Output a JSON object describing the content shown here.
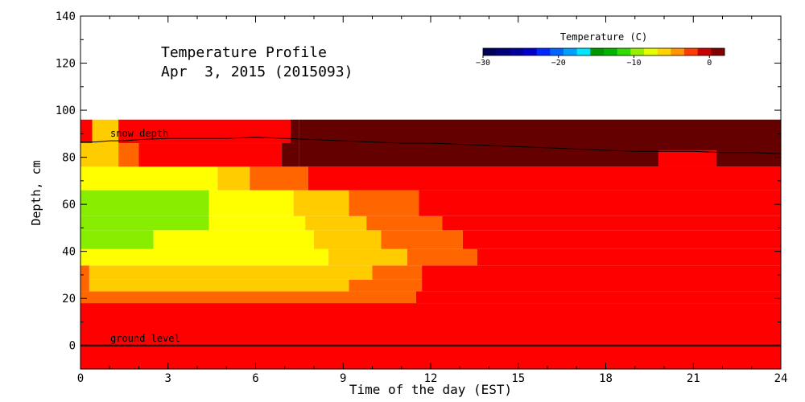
{
  "chart_data": {
    "type": "heatmap",
    "title": "Temperature Profile",
    "subtitle": "Apr  3, 2015 (2015093)",
    "xlabel": "Time of the day (EST)",
    "ylabel": "Depth, cm",
    "xlim": [
      0,
      24
    ],
    "ylim": [
      -10,
      140
    ],
    "x_ticks": [
      0,
      3,
      6,
      9,
      12,
      15,
      18,
      21,
      24
    ],
    "y_ticks": [
      0,
      20,
      40,
      60,
      80,
      100,
      120,
      140
    ],
    "grid": false,
    "colorbar": {
      "title": "Temperature (C)",
      "range": [
        -30,
        2
      ],
      "ticks": [
        -30,
        -20,
        -10,
        0
      ],
      "tick_labels": [
        "−30",
        "−20",
        "−10",
        "0"
      ],
      "colors": [
        "#00005a",
        "#000078",
        "#00009b",
        "#0000c8",
        "#0028ff",
        "#0064ff",
        "#00a0ff",
        "#00e6ff",
        "#009600",
        "#00b400",
        "#32dc00",
        "#96f000",
        "#e6ff00",
        "#ffd200",
        "#ff9600",
        "#ff3c00",
        "#c80000",
        "#800000"
      ]
    },
    "cell_colors": {
      "dark_red": "#640000",
      "red": "#ff0000",
      "orange_red": "#ff6600",
      "orange": "#ffcc00",
      "yellow": "#ffff00",
      "yellow_green": "#ccff00",
      "green": "#88ee00"
    },
    "cells": [
      {
        "t0": 0,
        "t1": 24,
        "z0": -10,
        "z1": 18,
        "color": "red"
      },
      {
        "t0": 0,
        "t1": 11.5,
        "z0": 18,
        "z1": 23,
        "color": "orange_red"
      },
      {
        "t0": 11.5,
        "t1": 24,
        "z0": 18,
        "z1": 23,
        "color": "red"
      },
      {
        "t0": 0,
        "t1": 0.3,
        "z0": 23,
        "z1": 34,
        "color": "orange_red"
      },
      {
        "t0": 0.3,
        "t1": 9.2,
        "z0": 23,
        "z1": 28,
        "color": "orange"
      },
      {
        "t0": 9.2,
        "t1": 11.7,
        "z0": 23,
        "z1": 28,
        "color": "orange_red"
      },
      {
        "t0": 0.3,
        "t1": 10,
        "z0": 28,
        "z1": 34,
        "color": "orange"
      },
      {
        "t0": 10,
        "t1": 11.7,
        "z0": 28,
        "z1": 34,
        "color": "orange_red"
      },
      {
        "t0": 11.7,
        "t1": 24,
        "z0": 23,
        "z1": 34,
        "color": "red"
      },
      {
        "t0": 0,
        "t1": 8.5,
        "z0": 34,
        "z1": 41,
        "color": "yellow"
      },
      {
        "t0": 8.5,
        "t1": 11.2,
        "z0": 34,
        "z1": 41,
        "color": "orange"
      },
      {
        "t0": 11.2,
        "t1": 13.6,
        "z0": 34,
        "z1": 41,
        "color": "orange_red"
      },
      {
        "t0": 13.6,
        "t1": 24,
        "z0": 34,
        "z1": 41,
        "color": "red"
      },
      {
        "t0": 0,
        "t1": 2.5,
        "z0": 41,
        "z1": 49,
        "color": "green"
      },
      {
        "t0": 2.5,
        "t1": 8,
        "z0": 41,
        "z1": 49,
        "color": "yellow"
      },
      {
        "t0": 8,
        "t1": 10.3,
        "z0": 41,
        "z1": 49,
        "color": "orange"
      },
      {
        "t0": 10.3,
        "t1": 13.1,
        "z0": 41,
        "z1": 49,
        "color": "orange_red"
      },
      {
        "t0": 13.1,
        "t1": 24,
        "z0": 41,
        "z1": 49,
        "color": "red"
      },
      {
        "t0": 0,
        "t1": 4.4,
        "z0": 49,
        "z1": 55,
        "color": "green"
      },
      {
        "t0": 4.4,
        "t1": 7.7,
        "z0": 49,
        "z1": 55,
        "color": "yellow"
      },
      {
        "t0": 7.7,
        "t1": 9.8,
        "z0": 49,
        "z1": 55,
        "color": "orange"
      },
      {
        "t0": 9.8,
        "t1": 12.4,
        "z0": 49,
        "z1": 55,
        "color": "orange_red"
      },
      {
        "t0": 12.4,
        "t1": 24,
        "z0": 49,
        "z1": 55,
        "color": "red"
      },
      {
        "t0": 0,
        "t1": 4.4,
        "z0": 55,
        "z1": 66,
        "color": "green"
      },
      {
        "t0": 4.4,
        "t1": 7.3,
        "z0": 55,
        "z1": 66,
        "color": "yellow"
      },
      {
        "t0": 7.3,
        "t1": 9.2,
        "z0": 55,
        "z1": 66,
        "color": "orange"
      },
      {
        "t0": 9.2,
        "t1": 11.6,
        "z0": 55,
        "z1": 66,
        "color": "orange_red"
      },
      {
        "t0": 11.6,
        "t1": 24,
        "z0": 55,
        "z1": 66,
        "color": "red"
      },
      {
        "t0": 0,
        "t1": 4.7,
        "z0": 66,
        "z1": 76,
        "color": "yellow"
      },
      {
        "t0": 4.7,
        "t1": 5.8,
        "z0": 66,
        "z1": 76,
        "color": "orange"
      },
      {
        "t0": 5.8,
        "t1": 7.8,
        "z0": 66,
        "z1": 76,
        "color": "orange_red"
      },
      {
        "t0": 7.8,
        "t1": 24,
        "z0": 66,
        "z1": 76,
        "color": "red"
      },
      {
        "t0": 0,
        "t1": 0.4,
        "z0": 76,
        "z1": 86,
        "color": "orange"
      },
      {
        "t0": 0.4,
        "t1": 1.3,
        "z0": 76,
        "z1": 96,
        "color": "orange"
      },
      {
        "t0": 1.3,
        "t1": 2,
        "z0": 76,
        "z1": 86,
        "color": "orange_red"
      },
      {
        "t0": 2,
        "t1": 6.9,
        "z0": 76,
        "z1": 86,
        "color": "red"
      },
      {
        "t0": 6.9,
        "t1": 7.5,
        "z0": 76,
        "z1": 86,
        "color": "dark_red"
      },
      {
        "t0": 0,
        "t1": 0.4,
        "z0": 86,
        "z1": 96,
        "color": "red"
      },
      {
        "t0": 1.3,
        "t1": 7.2,
        "z0": 86,
        "z1": 96,
        "color": "red"
      },
      {
        "t0": 7.2,
        "t1": 7.5,
        "z0": 86,
        "z1": 96,
        "color": "dark_red"
      },
      {
        "t0": 7.5,
        "t1": 24,
        "z0": 76,
        "z1": 96,
        "color": "dark_red"
      },
      {
        "t0": 19.8,
        "t1": 21.8,
        "z0": 76,
        "z1": 83,
        "color": "red"
      }
    ],
    "series": [
      {
        "name": "snow depth",
        "x": [
          0,
          0.5,
          1,
          1.5,
          2,
          3,
          4,
          5,
          6,
          7,
          8,
          9,
          10,
          11,
          12,
          13,
          14,
          15,
          16,
          17,
          18,
          19,
          20,
          21,
          22,
          23,
          24
        ],
        "y": [
          86.5,
          86.5,
          87,
          87,
          87.5,
          88,
          88,
          88,
          88.5,
          88,
          87.5,
          87,
          86.5,
          86,
          86,
          85.5,
          85,
          84.5,
          84,
          83.5,
          83,
          82.5,
          82.5,
          82.5,
          82,
          82,
          81.5
        ]
      },
      {
        "name": "ground level",
        "x": [
          0,
          24
        ],
        "y": [
          0,
          0
        ]
      }
    ]
  }
}
